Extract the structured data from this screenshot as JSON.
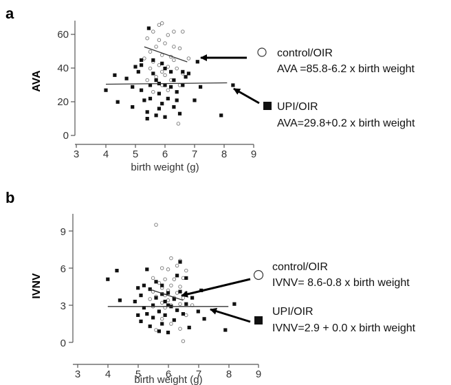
{
  "chart_data": [
    {
      "type": "scatter",
      "panel": "a",
      "xlabel": "birth weight (g)",
      "ylabel": "AVA",
      "xlim": [
        3,
        9
      ],
      "ylim": [
        0,
        70
      ],
      "xticks": [
        "3",
        "4",
        "5",
        "6",
        "7",
        "8",
        "9"
      ],
      "yticks": [
        "0",
        "20",
        "40",
        "60"
      ],
      "grid": false,
      "series": [
        {
          "name": "control/OIR",
          "marker": "open-circle",
          "equation": "AVA =85.8-6.2 x birth weight",
          "fit": {
            "intercept": 85.8,
            "slope": -6.2,
            "x_range": [
              5.3,
              6.75
            ]
          },
          "points": [
            [
              5.4,
              58
            ],
            [
              5.6,
              62
            ],
            [
              5.8,
              66
            ],
            [
              5.9,
              67
            ],
            [
              6.1,
              60
            ],
            [
              6.3,
              62
            ],
            [
              6.6,
              62
            ],
            [
              6.0,
              55
            ],
            [
              5.7,
              53
            ],
            [
              6.3,
              53
            ],
            [
              6.5,
              52
            ],
            [
              5.5,
              50
            ],
            [
              5.9,
              48
            ],
            [
              6.2,
              47
            ],
            [
              6.8,
              46
            ],
            [
              5.3,
              46
            ],
            [
              5.6,
              44
            ],
            [
              5.8,
              42
            ],
            [
              6.1,
              41
            ],
            [
              6.4,
              40
            ],
            [
              5.5,
              40
            ],
            [
              5.9,
              38
            ],
            [
              6.6,
              37
            ],
            [
              6.0,
              36
            ],
            [
              5.7,
              35
            ],
            [
              6.2,
              33
            ],
            [
              5.4,
              33
            ],
            [
              6.5,
              30
            ],
            [
              5.9,
              30
            ],
            [
              6.1,
              27
            ],
            [
              5.6,
              26
            ],
            [
              6.3,
              45
            ],
            [
              5.8,
              57
            ],
            [
              6.45,
              7
            ]
          ]
        },
        {
          "name": "UPI/OIR",
          "marker": "filled-square",
          "equation": "AVA=29.8+0.2 x birth weight",
          "fit": {
            "intercept": 29.8,
            "slope": 0.2,
            "x_range": [
              4.0,
              8.1
            ]
          },
          "points": [
            [
              4.0,
              27
            ],
            [
              4.3,
              36
            ],
            [
              4.4,
              20
            ],
            [
              4.7,
              34
            ],
            [
              4.9,
              29
            ],
            [
              4.9,
              17
            ],
            [
              5.1,
              38
            ],
            [
              5.2,
              42
            ],
            [
              5.2,
              27
            ],
            [
              5.3,
              21
            ],
            [
              5.4,
              14
            ],
            [
              5.4,
              10
            ],
            [
              5.5,
              30
            ],
            [
              5.5,
              22
            ],
            [
              5.6,
              45
            ],
            [
              5.6,
              37
            ],
            [
              5.7,
              12
            ],
            [
              5.7,
              33
            ],
            [
              5.8,
              25
            ],
            [
              5.8,
              16
            ],
            [
              5.9,
              19
            ],
            [
              5.9,
              43
            ],
            [
              6.0,
              11
            ],
            [
              6.0,
              30
            ],
            [
              6.1,
              22
            ],
            [
              6.2,
              38
            ],
            [
              6.2,
              29
            ],
            [
              6.3,
              17
            ],
            [
              6.4,
              26
            ],
            [
              6.4,
              21
            ],
            [
              6.5,
              13
            ],
            [
              6.6,
              30
            ],
            [
              6.7,
              35
            ],
            [
              6.8,
              37
            ],
            [
              7.0,
              21
            ],
            [
              7.1,
              44
            ],
            [
              7.2,
              29
            ],
            [
              7.9,
              12
            ],
            [
              8.3,
              30
            ],
            [
              6.0,
              40
            ],
            [
              5.2,
              45
            ],
            [
              6.6,
              38
            ],
            [
              5.0,
              41
            ],
            [
              5.8,
              31
            ],
            [
              6.3,
              33
            ],
            [
              5.45,
              64
            ]
          ]
        }
      ]
    },
    {
      "type": "scatter",
      "panel": "b",
      "xlabel": "birth weight (g)",
      "ylabel": "IVNV",
      "xlim": [
        3,
        9
      ],
      "ylim": [
        0,
        10
      ],
      "xticks": [
        "3",
        "4",
        "5",
        "6",
        "7",
        "8",
        "9"
      ],
      "yticks": [
        "0",
        "3",
        "6",
        "9"
      ],
      "grid": false,
      "series": [
        {
          "name": "control/OIR",
          "marker": "open-circle",
          "equation": "IVNV= 8.6-0.8 x birth weight",
          "fit": {
            "intercept": 8.6,
            "slope": -0.8,
            "x_range": [
              5.4,
              6.5
            ]
          },
          "points": [
            [
              5.6,
              9.5
            ],
            [
              6.1,
              6.8
            ],
            [
              6.4,
              6.6
            ],
            [
              6.3,
              6.2
            ],
            [
              5.8,
              6.0
            ],
            [
              6.0,
              5.9
            ],
            [
              6.6,
              5.8
            ],
            [
              5.5,
              5.2
            ],
            [
              5.9,
              5.1
            ],
            [
              6.2,
              5.1
            ],
            [
              6.5,
              5.2
            ],
            [
              5.7,
              4.8
            ],
            [
              6.1,
              4.6
            ],
            [
              6.4,
              4.5
            ],
            [
              5.8,
              4.4
            ],
            [
              6.0,
              4.2
            ],
            [
              5.5,
              4.1
            ],
            [
              6.3,
              4.0
            ],
            [
              6.6,
              4.0
            ],
            [
              5.9,
              3.8
            ],
            [
              5.6,
              3.7
            ],
            [
              6.2,
              3.6
            ],
            [
              6.5,
              3.6
            ],
            [
              5.4,
              3.5
            ],
            [
              6.0,
              3.4
            ],
            [
              5.8,
              3.2
            ],
            [
              6.4,
              3.1
            ],
            [
              6.1,
              3.0
            ],
            [
              6.8,
              3.0
            ],
            [
              5.5,
              2.9
            ],
            [
              5.9,
              2.8
            ],
            [
              6.3,
              2.6
            ],
            [
              5.7,
              2.5
            ],
            [
              6.6,
              2.2
            ],
            [
              5.8,
              1.9
            ],
            [
              6.1,
              1.5
            ],
            [
              6.4,
              1.1
            ],
            [
              5.6,
              1.0
            ],
            [
              6.5,
              0.1
            ]
          ]
        },
        {
          "name": "UPI/OIR",
          "marker": "filled-square",
          "equation": "IVNV=2.9 + 0.0 x birth weight",
          "fit": {
            "intercept": 2.9,
            "slope": 0.0,
            "x_range": [
              4.0,
              8.0
            ]
          },
          "points": [
            [
              4.0,
              5.1
            ],
            [
              4.3,
              5.8
            ],
            [
              4.4,
              3.4
            ],
            [
              4.9,
              3.3
            ],
            [
              5.0,
              4.4
            ],
            [
              5.1,
              3.8
            ],
            [
              5.1,
              1.7
            ],
            [
              5.2,
              2.8
            ],
            [
              5.3,
              5.9
            ],
            [
              5.3,
              2.3
            ],
            [
              5.4,
              4.3
            ],
            [
              5.4,
              1.3
            ],
            [
              5.5,
              3.0
            ],
            [
              5.5,
              2.0
            ],
            [
              5.6,
              4.9
            ],
            [
              5.6,
              3.6
            ],
            [
              5.7,
              0.9
            ],
            [
              5.7,
              2.5
            ],
            [
              5.8,
              4.6
            ],
            [
              5.8,
              1.5
            ],
            [
              5.9,
              3.3
            ],
            [
              5.9,
              2.2
            ],
            [
              6.0,
              4.0
            ],
            [
              6.0,
              0.8
            ],
            [
              6.1,
              2.9
            ],
            [
              6.2,
              3.5
            ],
            [
              6.2,
              1.8
            ],
            [
              6.3,
              2.6
            ],
            [
              6.4,
              6.5
            ],
            [
              6.4,
              4.1
            ],
            [
              6.5,
              2.3
            ],
            [
              6.6,
              5.2
            ],
            [
              6.6,
              3.1
            ],
            [
              6.7,
              1.2
            ],
            [
              6.8,
              3.6
            ],
            [
              7.0,
              2.5
            ],
            [
              7.1,
              4.2
            ],
            [
              7.2,
              1.9
            ],
            [
              7.9,
              1.0
            ],
            [
              8.2,
              3.1
            ],
            [
              6.0,
              3.0
            ],
            [
              5.2,
              4.6
            ],
            [
              6.3,
              5.4
            ],
            [
              5.0,
              2.2
            ],
            [
              5.8,
              3.9
            ]
          ]
        }
      ]
    }
  ],
  "legend_markers": {
    "open_circle": "○",
    "filled_square": "■"
  },
  "colors": {
    "axis": "#555555",
    "marker_open_stroke": "#777777",
    "marker_filled": "#111111",
    "fit_line": "#333333",
    "arrow": "#000000"
  }
}
